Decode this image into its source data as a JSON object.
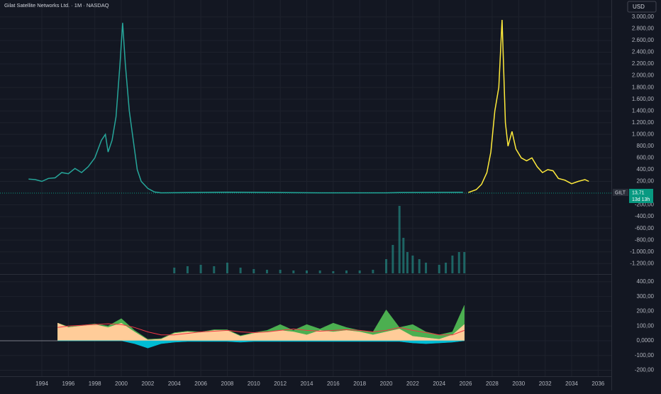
{
  "header": {
    "title": "Gilat Satellite Networks Ltd. · 1M · NASDAQ",
    "currency": "USD"
  },
  "last_price": {
    "symbol": "GILT",
    "price": "13,71",
    "countdown": "13d 13h"
  },
  "chart_data": [
    {
      "type": "line",
      "xlim": [
        1990.84,
        2037.0
      ],
      "xticks": [
        1994,
        1996,
        1998,
        2000,
        2002,
        2004,
        2006,
        2008,
        2010,
        2012,
        2014,
        2016,
        2018,
        2020,
        2022,
        2024,
        2026,
        2028,
        2030,
        2032,
        2034,
        2036
      ],
      "ylim": [
        -1366,
        3168
      ],
      "yticks": [
        {
          "value": 3000,
          "label": "3.000,00"
        },
        {
          "value": 2800,
          "label": "2.800,00"
        },
        {
          "value": 2600,
          "label": "2.600,00"
        },
        {
          "value": 2400,
          "label": "2.400,00"
        },
        {
          "value": 2200,
          "label": "2.200,00"
        },
        {
          "value": 2000,
          "label": "2.000,00"
        },
        {
          "value": 1800,
          "label": "1.800,00"
        },
        {
          "value": 1600,
          "label": "1.600,00"
        },
        {
          "value": 1400,
          "label": "1.400,00"
        },
        {
          "value": 1200,
          "label": "1.200,00"
        },
        {
          "value": 1000,
          "label": "1.000,00"
        },
        {
          "value": 800,
          "label": "800,00"
        },
        {
          "value": 600,
          "label": "600,00"
        },
        {
          "value": 400,
          "label": "400,00"
        },
        {
          "value": 200,
          "label": "200,00"
        },
        {
          "value": -200,
          "label": "-200,00"
        },
        {
          "value": -400,
          "label": "-400,00"
        },
        {
          "value": -600,
          "label": "-600,00"
        },
        {
          "value": -800,
          "label": "-800,00"
        },
        {
          "value": -1000,
          "label": "-1.000,00"
        },
        {
          "value": -1200,
          "label": "-1.200,00"
        }
      ],
      "grid": true,
      "series": [
        {
          "color": "#26a69a",
          "x": [
            1993.0,
            1993.5,
            1994.0,
            1994.5,
            1995.0,
            1995.5,
            1996.0,
            1996.5,
            1997.0,
            1997.5,
            1998.0,
            1998.5,
            1998.8,
            1999.0,
            1999.3,
            1999.6,
            1999.9,
            2000.1,
            2000.3,
            2000.6,
            2000.9,
            2001.2,
            2001.5,
            2002.0,
            2002.5,
            2003.0,
            2008.0,
            2015.0,
            2020.0,
            2021.0,
            2025.8
          ],
          "values": [
            240,
            230,
            200,
            250,
            260,
            350,
            330,
            420,
            350,
            450,
            600,
            900,
            1000,
            700,
            900,
            1300,
            2200,
            2900,
            2200,
            1400,
            900,
            400,
            200,
            80,
            20,
            5,
            15,
            5,
            5,
            10,
            14
          ]
        },
        {
          "color": "#ffeb3b",
          "x": [
            2026.2,
            2026.8,
            2027.2,
            2027.6,
            2027.9,
            2028.2,
            2028.5,
            2028.75,
            2029.0,
            2029.2,
            2029.5,
            2029.8,
            2030.2,
            2030.6,
            2031.0,
            2031.4,
            2031.8,
            2032.2,
            2032.6,
            2033.0,
            2033.5,
            2034.0,
            2034.5,
            2035.0,
            2035.3
          ],
          "values": [
            10,
            60,
            150,
            350,
            700,
            1400,
            1800,
            2950,
            1200,
            800,
            1050,
            750,
            600,
            550,
            600,
            450,
            350,
            400,
            380,
            250,
            220,
            160,
            200,
            230,
            200
          ]
        }
      ]
    },
    {
      "type": "bar",
      "color": "#26a69a",
      "ylim": [
        0,
        100
      ],
      "x": [
        2004,
        2005,
        2006,
        2007,
        2008,
        2009,
        2010,
        2011,
        2012,
        2013,
        2014,
        2015,
        2016,
        2017,
        2018,
        2019,
        2020,
        2020.5,
        2021,
        2021.3,
        2021.6,
        2022,
        2022.5,
        2023,
        2024,
        2024.5,
        2025,
        2025.5,
        2025.9
      ],
      "values": [
        8,
        10,
        12,
        10,
        15,
        8,
        6,
        5,
        5,
        4,
        4,
        4,
        3,
        4,
        4,
        5,
        20,
        40,
        95,
        50,
        30,
        25,
        20,
        15,
        12,
        15,
        25,
        30,
        30
      ]
    },
    {
      "type": "area",
      "ylim": [
        -241,
        443
      ],
      "yticks": [
        {
          "value": 400,
          "label": "400,00"
        },
        {
          "value": 300,
          "label": "300,00"
        },
        {
          "value": 200,
          "label": "200,00"
        },
        {
          "value": 100,
          "label": "100,00"
        },
        {
          "value": 0,
          "label": "0,0000"
        },
        {
          "value": -100,
          "label": "-100,00"
        },
        {
          "value": -200,
          "label": "-200,00"
        }
      ],
      "x": [
        1995.2,
        1996,
        1997,
        1998,
        1999,
        2000,
        2001,
        2002,
        2003,
        2004,
        2005,
        2006,
        2007,
        2008,
        2009,
        2010,
        2011,
        2012,
        2013,
        2014,
        2015,
        2016,
        2017,
        2018,
        2019,
        2020,
        2021,
        2022,
        2023,
        2024,
        2025,
        2025.9
      ],
      "series": [
        {
          "color": "#4caf50",
          "style": "area",
          "values": [
            120,
            95,
            105,
            115,
            100,
            150,
            70,
            10,
            15,
            55,
            65,
            60,
            75,
            75,
            35,
            55,
            70,
            110,
            70,
            110,
            80,
            120,
            90,
            70,
            60,
            210,
            90,
            110,
            60,
            40,
            60,
            240
          ]
        },
        {
          "color": "#ffcc99",
          "style": "area",
          "values": [
            120,
            90,
            100,
            110,
            90,
            120,
            60,
            5,
            10,
            50,
            60,
            55,
            70,
            70,
            30,
            50,
            60,
            70,
            60,
            40,
            70,
            60,
            70,
            60,
            40,
            60,
            80,
            30,
            20,
            10,
            40,
            110
          ]
        },
        {
          "color": "#00bcd4",
          "style": "area",
          "values": [
            0,
            0,
            0,
            0,
            0,
            0,
            -20,
            -50,
            -20,
            -10,
            -5,
            -5,
            -5,
            -5,
            -10,
            -5,
            -5,
            -5,
            -5,
            -5,
            -5,
            -5,
            -5,
            -5,
            -5,
            -5,
            -5,
            -15,
            -20,
            -15,
            -10,
            0
          ]
        },
        {
          "color": "#f23645",
          "style": "line",
          "values": [
            90,
            100,
            105,
            110,
            115,
            110,
            90,
            60,
            40,
            40,
            50,
            60,
            65,
            70,
            60,
            55,
            60,
            70,
            80,
            70,
            65,
            70,
            75,
            70,
            60,
            70,
            90,
            70,
            55,
            40,
            40,
            70
          ]
        }
      ]
    }
  ]
}
